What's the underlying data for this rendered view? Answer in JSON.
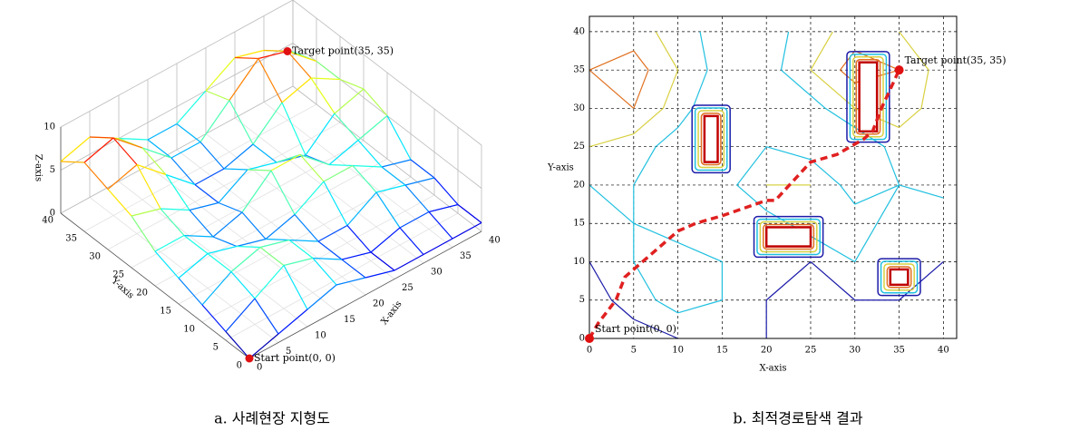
{
  "chart_data": [
    {
      "type": "surface3d",
      "x": [
        0,
        5,
        10,
        15,
        20,
        25,
        30,
        35,
        40
      ],
      "y": [
        0,
        5,
        10,
        15,
        20,
        25,
        30,
        35,
        40
      ],
      "z": [
        [
          0,
          1,
          2,
          3,
          2,
          1,
          1,
          1,
          1
        ],
        [
          1,
          3,
          5,
          4,
          2,
          1,
          2,
          2,
          1
        ],
        [
          2,
          4,
          5,
          4,
          2,
          2,
          4,
          3,
          2
        ],
        [
          3,
          4,
          3,
          2,
          3,
          5,
          5,
          3,
          2
        ],
        [
          4,
          4,
          2,
          3,
          6,
          6,
          3,
          4,
          5
        ],
        [
          6,
          5,
          3,
          2,
          4,
          3,
          2,
          5,
          6
        ],
        [
          7,
          8,
          5,
          2,
          2,
          3,
          6,
          7,
          5
        ],
        [
          8,
          9,
          6,
          3,
          3,
          6,
          9,
          8,
          5
        ],
        [
          6,
          7,
          5,
          3,
          3,
          5,
          7,
          6,
          4
        ]
      ],
      "xlim": [
        0,
        40
      ],
      "ylim": [
        0,
        40
      ],
      "zlim": [
        0,
        10
      ],
      "xticks": [
        0,
        5,
        10,
        15,
        20,
        25,
        30,
        35,
        40
      ],
      "yticks": [
        0,
        5,
        10,
        15,
        20,
        25,
        30,
        35,
        40
      ],
      "zticks": [
        0,
        5,
        10
      ],
      "xlabel": "X-axis",
      "ylabel": "Y-axis",
      "zlabel": "Z-axis",
      "annotations": [
        {
          "text": "Target point(35, 35)",
          "x": 35,
          "y": 35
        },
        {
          "text": "Start point(0, 0)",
          "x": 0,
          "y": 0
        }
      ],
      "caption": "a. 사례현장 지형도"
    },
    {
      "type": "contour",
      "x": [
        0,
        5,
        10,
        15,
        20,
        25,
        30,
        35,
        40
      ],
      "y": [
        0,
        5,
        10,
        15,
        20,
        25,
        30,
        35,
        40
      ],
      "z": [
        [
          0,
          1,
          2,
          3,
          2,
          1,
          1,
          1,
          1
        ],
        [
          1,
          3,
          5,
          4,
          2,
          1,
          2,
          2,
          1
        ],
        [
          2,
          4,
          5,
          4,
          2,
          2,
          4,
          3,
          2
        ],
        [
          3,
          4,
          3,
          2,
          3,
          5,
          5,
          3,
          2
        ],
        [
          4,
          4,
          2,
          3,
          6,
          6,
          3,
          4,
          5
        ],
        [
          6,
          5,
          3,
          2,
          4,
          3,
          2,
          5,
          6
        ],
        [
          7,
          8,
          5,
          2,
          2,
          3,
          6,
          7,
          5
        ],
        [
          8,
          9,
          6,
          3,
          3,
          6,
          9,
          8,
          5
        ],
        [
          6,
          7,
          5,
          3,
          3,
          5,
          7,
          6,
          4
        ]
      ],
      "levels": [
        2,
        4,
        6,
        8
      ],
      "level_colors": [
        "#1a1aa8",
        "#20c0e0",
        "#d8d040",
        "#e07020"
      ],
      "xlim": [
        0,
        41.5
      ],
      "ylim": [
        0,
        42
      ],
      "xticks": [
        0,
        5,
        10,
        15,
        20,
        25,
        30,
        35,
        40
      ],
      "yticks": [
        0,
        5,
        10,
        15,
        20,
        25,
        30,
        35,
        40
      ],
      "grid": true,
      "xlabel": "X-axis",
      "ylabel": "Y-axis",
      "obstacles": [
        {
          "x": [
            13,
            14.5
          ],
          "y": [
            23,
            29
          ]
        },
        {
          "x": [
            20,
            25
          ],
          "y": [
            12,
            14.5
          ]
        },
        {
          "x": [
            30.5,
            32.5
          ],
          "y": [
            27,
            36
          ]
        },
        {
          "x": [
            34,
            36
          ],
          "y": [
            7,
            9
          ]
        }
      ],
      "path": {
        "color": "#e02020",
        "x": [
          0,
          1,
          3,
          4,
          7,
          10,
          12,
          15,
          20,
          21,
          25,
          28,
          31,
          32,
          33,
          35
        ],
        "y": [
          0,
          2,
          5,
          8,
          11,
          14,
          15,
          16,
          18,
          18,
          23,
          24,
          26,
          27,
          30,
          35
        ]
      },
      "annotations": [
        {
          "text": "Target point(35, 35)",
          "x": 35,
          "y": 35
        },
        {
          "text": "Start point(0, 0)",
          "x": 0,
          "y": 0
        }
      ],
      "caption": "b. 최적경로탐색 결과"
    }
  ]
}
